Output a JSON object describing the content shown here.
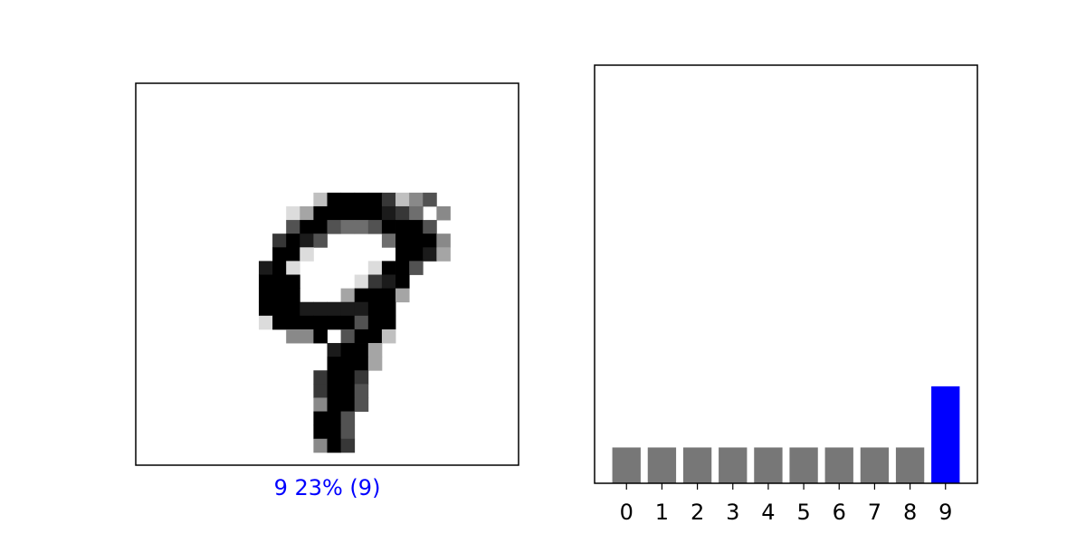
{
  "image_panel": {
    "caption": "9 23% (9)",
    "caption_color": "#0000ff",
    "cmap": "binary",
    "rows": [
      "..........................",
      "..........................",
      "..........................",
      "..........................",
      "..........................",
      "..........................",
      "..........................",
      "............299997246.....",
      "..........1399999875.4....",
      "..........69965569996.....",
      ".........7986....59994....",
      ".........991......9983....",
      "........891.....1996......",
      "........999....1789.......",
      "........999...39993.......",
      "........9998888899........",
      "........1999999699........",
      "..........449.6992........",
      ".............8993.........",
      ".............9993.........",
      "............7997..........",
      "............7996..........",
      "............4996..........",
      "............996...........",
      "............996...........",
      "............497..........."
    ]
  },
  "chart_data": {
    "type": "bar",
    "categories": [
      "0",
      "1",
      "2",
      "3",
      "4",
      "5",
      "6",
      "7",
      "8",
      "9"
    ],
    "values": [
      0.0856,
      0.0856,
      0.0856,
      0.0856,
      0.0856,
      0.0856,
      0.0856,
      0.0856,
      0.0856,
      0.2319
    ],
    "ylim": [
      0,
      1
    ],
    "bar_color": "#777777",
    "highlight_index": 9,
    "highlight_color": "#0000ff",
    "grid": false,
    "y_ticks": false,
    "title": "",
    "xlabel": "",
    "ylabel": ""
  }
}
